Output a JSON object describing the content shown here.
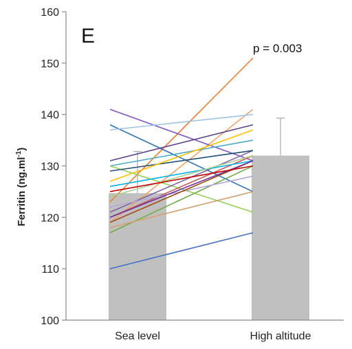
{
  "chart_data": {
    "type": "bar",
    "panel_label": "E",
    "ylabel_main": "Ferritin (ng.ml",
    "ylabel_sup": "-1",
    "ylabel_close": ")",
    "categories": [
      "Sea level",
      "High altitude"
    ],
    "bar_values": [
      124.7,
      132.0
    ],
    "error_upper": [
      132.8,
      139.3
    ],
    "bar_color": "#c0c0c0",
    "ylim": [
      100,
      160
    ],
    "yticks": [
      "100",
      "110",
      "120",
      "130",
      "140",
      "150",
      "160"
    ],
    "grid": false,
    "annotation": "p = 0.003",
    "individual_lines": [
      {
        "color": "#4472c4",
        "values": [
          110,
          117
        ]
      },
      {
        "color": "#ed7d31",
        "values": [
          123,
          151
        ]
      },
      {
        "color": "#f4a261",
        "values": [
          119,
          141
        ]
      },
      {
        "color": "#7e57c2",
        "values": [
          141,
          131
        ]
      },
      {
        "color": "#2e75b6",
        "values": [
          138,
          125
        ]
      },
      {
        "color": "#9dc3e6",
        "values": [
          137,
          140
        ]
      },
      {
        "color": "#5b3f8c",
        "values": [
          131,
          138
        ]
      },
      {
        "color": "#4bacc6",
        "values": [
          130,
          135
        ]
      },
      {
        "color": "#92d050",
        "values": [
          130,
          121
        ]
      },
      {
        "color": "#70ad47",
        "values": [
          117,
          130
        ]
      },
      {
        "color": "#c55a5a",
        "values": [
          120,
          132
        ]
      },
      {
        "color": "#8064a2",
        "values": [
          121,
          133
        ]
      },
      {
        "color": "#1f4e79",
        "values": [
          129,
          133
        ]
      },
      {
        "color": "#d4a373",
        "values": [
          118,
          125
        ]
      },
      {
        "color": "#b4a7d6",
        "values": [
          122,
          128
        ]
      },
      {
        "color": "#00b0f0",
        "values": [
          126,
          131
        ]
      },
      {
        "color": "#9e480e",
        "values": [
          119,
          131
        ]
      },
      {
        "color": "#ffc000",
        "values": [
          127,
          137
        ]
      },
      {
        "color": "#a9d18e",
        "values": [
          124,
          132
        ]
      },
      {
        "color": "#7030a0",
        "values": [
          120,
          131
        ]
      },
      {
        "color": "#c00000",
        "values": [
          125,
          130
        ]
      }
    ]
  }
}
